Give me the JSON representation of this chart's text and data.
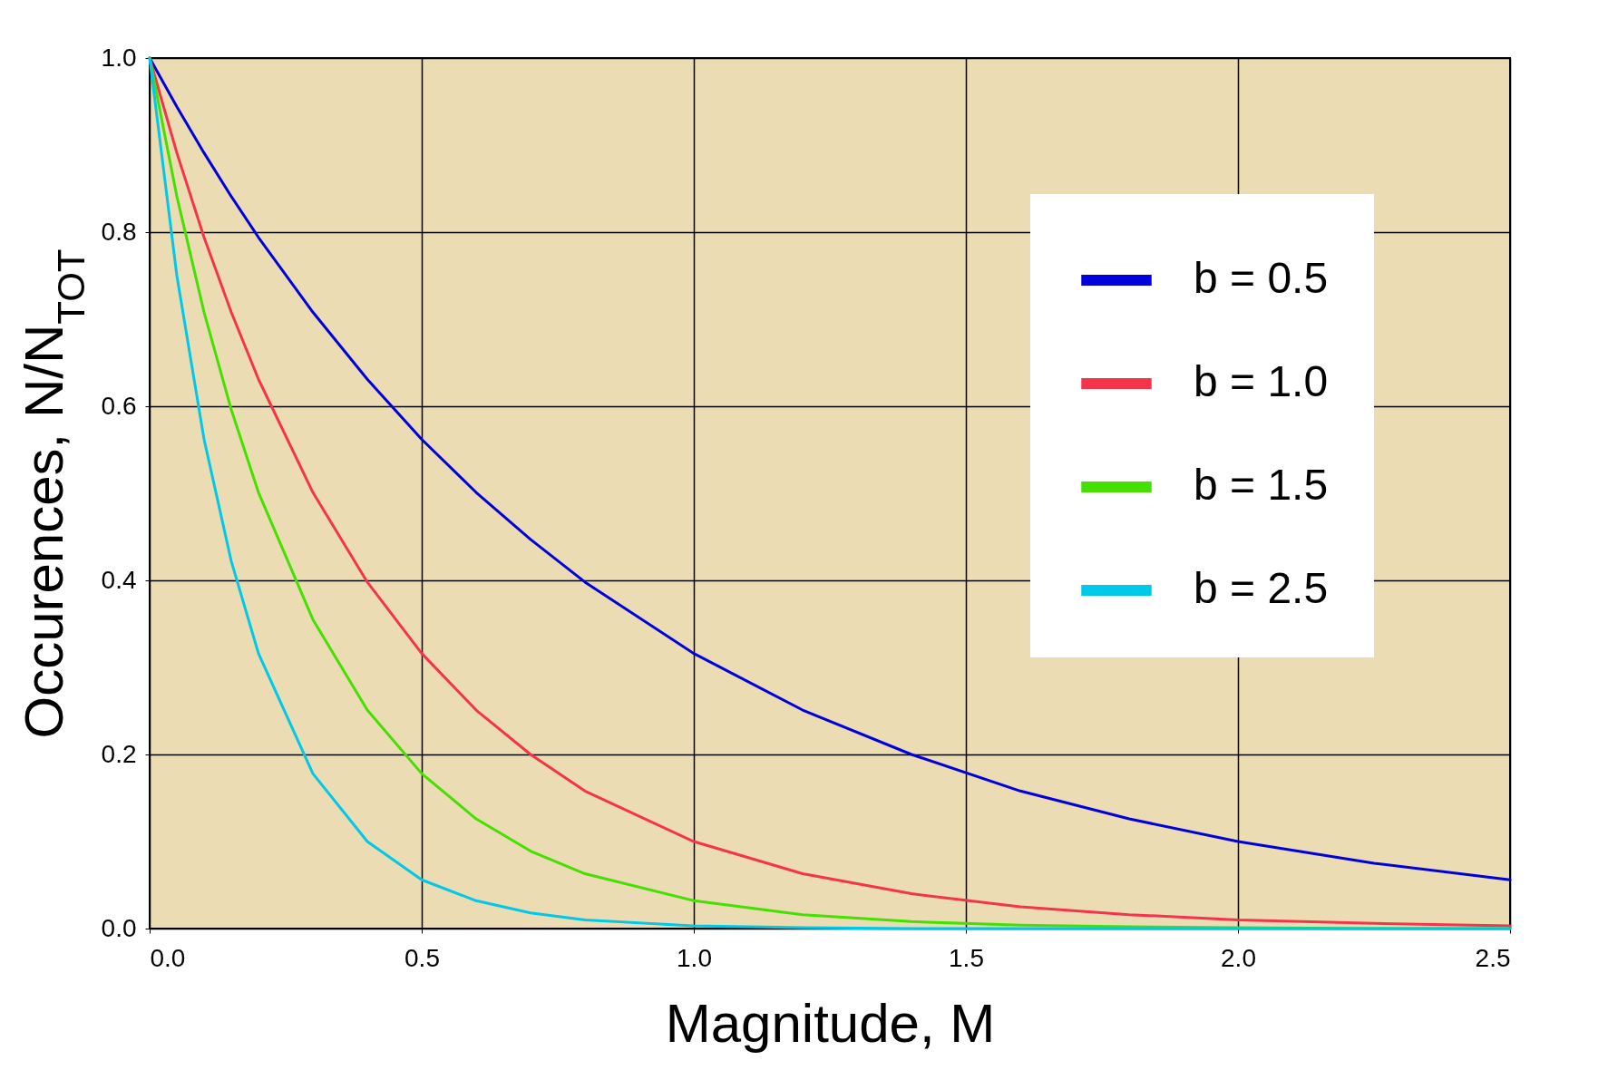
{
  "chart_data": {
    "type": "line",
    "xlabel": "Magnitude, M",
    "ylabel": "Occurences, N/N$_{TOT}$",
    "x": [
      0,
      0.05,
      0.1,
      0.15,
      0.2,
      0.3,
      0.4,
      0.5,
      0.6,
      0.7,
      0.8,
      1.0,
      1.2,
      1.4,
      1.6,
      1.8,
      2.0,
      2.25,
      2.5
    ],
    "series": [
      {
        "name": "b = 0.5",
        "color": "#0000dd",
        "values": [
          1,
          0.944,
          0.891,
          0.841,
          0.794,
          0.708,
          0.631,
          0.562,
          0.501,
          0.447,
          0.398,
          0.316,
          0.251,
          0.2,
          0.158,
          0.126,
          0.1,
          0.075,
          0.056
        ]
      },
      {
        "name": "b = 1.0",
        "color": "#f5334a",
        "values": [
          1,
          0.891,
          0.794,
          0.708,
          0.631,
          0.501,
          0.398,
          0.316,
          0.251,
          0.2,
          0.158,
          0.1,
          0.063,
          0.04,
          0.025,
          0.016,
          0.01,
          0.006,
          0.003
        ]
      },
      {
        "name": "b = 1.5",
        "color": "#44e000",
        "values": [
          1,
          0.841,
          0.708,
          0.596,
          0.501,
          0.355,
          0.251,
          0.178,
          0.126,
          0.089,
          0.063,
          0.032,
          0.016,
          0.008,
          0.004,
          0.002,
          0.001,
          0,
          0
        ]
      },
      {
        "name": "b = 2.5",
        "color": "#00c8e8",
        "values": [
          1,
          0.75,
          0.562,
          0.422,
          0.316,
          0.178,
          0.1,
          0.056,
          0.032,
          0.018,
          0.01,
          0.003,
          0.001,
          0,
          0,
          0,
          0,
          0,
          0
        ]
      }
    ],
    "xlim": [
      0,
      2.5
    ],
    "ylim": [
      0,
      1
    ],
    "xticks": [
      {
        "value": 0,
        "label": "0.0"
      },
      {
        "value": 0.5,
        "label": "0.5"
      },
      {
        "value": 1,
        "label": "1.0"
      },
      {
        "value": 1.5,
        "label": "1.5"
      },
      {
        "value": 2,
        "label": "2.0"
      },
      {
        "value": 2.5,
        "label": "2.5"
      }
    ],
    "yticks": [
      {
        "value": 0,
        "label": "0.0"
      },
      {
        "value": 0.2,
        "label": "0.2"
      },
      {
        "value": 0.4,
        "label": "0.4"
      },
      {
        "value": 0.6,
        "label": "0.6"
      },
      {
        "value": 0.8,
        "label": "0.8"
      },
      {
        "value": 1,
        "label": "1.0"
      }
    ],
    "grid": true,
    "legend": "top right",
    "line_style": "solid",
    "marker": "none"
  }
}
